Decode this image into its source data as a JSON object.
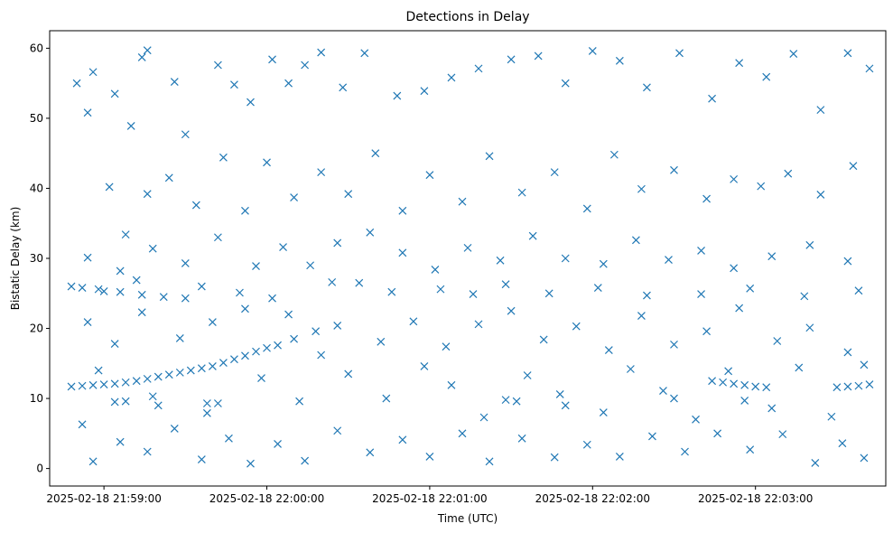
{
  "chart_data": {
    "type": "scatter",
    "title": "Detections in Delay",
    "xlabel": "Time (UTC)",
    "ylabel": "Bistatic Delay (km)",
    "x_ticks": [
      "2025-02-18 21:59:00",
      "2025-02-18 22:00:00",
      "2025-02-18 22:01:00",
      "2025-02-18 22:02:00",
      "2025-02-18 22:03:00"
    ],
    "y_ticks": [
      0,
      10,
      20,
      30,
      40,
      50,
      60
    ],
    "xlim": [
      "2025-02-18 21:58:40",
      "2025-02-18 22:03:48"
    ],
    "ylim": [
      -2.5,
      62.5
    ],
    "grid": false,
    "marker": "x",
    "color": "#1f77b4",
    "series": [
      {
        "points": [
          [
            "2025-02-18 21:58:48",
            11.7
          ],
          [
            "2025-02-18 21:58:52",
            11.8
          ],
          [
            "2025-02-18 21:58:56",
            11.9
          ],
          [
            "2025-02-18 21:59:00",
            12.0
          ],
          [
            "2025-02-18 21:59:04",
            12.1
          ],
          [
            "2025-02-18 21:59:08",
            12.3
          ],
          [
            "2025-02-18 21:59:12",
            12.5
          ],
          [
            "2025-02-18 21:59:16",
            12.8
          ],
          [
            "2025-02-18 21:59:20",
            13.1
          ],
          [
            "2025-02-18 21:59:24",
            13.4
          ],
          [
            "2025-02-18 21:59:28",
            13.7
          ],
          [
            "2025-02-18 21:59:32",
            14.0
          ],
          [
            "2025-02-18 21:59:36",
            14.3
          ],
          [
            "2025-02-18 21:59:40",
            14.6
          ],
          [
            "2025-02-18 21:59:44",
            15.1
          ],
          [
            "2025-02-18 21:59:48",
            15.6
          ],
          [
            "2025-02-18 21:59:52",
            16.1
          ],
          [
            "2025-02-18 21:59:56",
            16.7
          ],
          [
            "2025-02-18 22:00:00",
            17.2
          ],
          [
            "2025-02-18 22:00:04",
            17.6
          ],
          [
            "2025-02-18 22:00:10",
            18.5
          ],
          [
            "2025-02-18 22:00:18",
            19.6
          ],
          [
            "2025-02-18 22:00:26",
            20.4
          ],
          [
            "2025-02-18 22:00:34",
            26.5
          ],
          [
            "2025-02-18 22:02:44",
            12.5
          ],
          [
            "2025-02-18 22:02:48",
            12.3
          ],
          [
            "2025-02-18 22:02:52",
            12.1
          ],
          [
            "2025-02-18 22:02:56",
            11.9
          ],
          [
            "2025-02-18 22:03:00",
            11.7
          ],
          [
            "2025-02-18 22:03:04",
            11.6
          ],
          [
            "2025-02-18 22:03:30",
            11.6
          ],
          [
            "2025-02-18 22:03:34",
            11.7
          ],
          [
            "2025-02-18 22:03:38",
            11.8
          ],
          [
            "2025-02-18 22:03:42",
            12.0
          ],
          [
            "2025-02-18 21:58:48",
            26.0
          ],
          [
            "2025-02-18 21:58:52",
            25.8
          ],
          [
            "2025-02-18 21:58:58",
            25.6
          ],
          [
            "2025-02-18 21:59:06",
            25.2
          ],
          [
            "2025-02-18 21:59:14",
            24.8
          ],
          [
            "2025-02-18 21:59:22",
            24.5
          ],
          [
            "2025-02-18 21:59:30",
            24.3
          ],
          [
            "2025-02-18 21:59:04",
            9.5
          ],
          [
            "2025-02-18 21:59:08",
            9.6
          ],
          [
            "2025-02-18 21:59:20",
            9.0
          ],
          [
            "2025-02-18 21:59:38",
            9.3
          ],
          [
            "2025-02-18 21:59:42",
            9.3
          ],
          [
            "2025-02-18 22:01:28",
            9.8
          ],
          [
            "2025-02-18 22:01:32",
            9.6
          ],
          [
            "2025-02-18 22:01:50",
            9.0
          ],
          [
            "2025-02-18 22:02:30",
            10.0
          ],
          [
            "2025-02-18 22:02:56",
            9.7
          ],
          [
            "2025-02-18 21:58:50",
            55.0
          ],
          [
            "2025-02-18 21:58:54",
            50.8
          ],
          [
            "2025-02-18 21:58:56",
            56.6
          ],
          [
            "2025-02-18 21:59:04",
            53.5
          ],
          [
            "2025-02-18 21:59:10",
            48.9
          ],
          [
            "2025-02-18 21:59:14",
            58.7
          ],
          [
            "2025-02-18 21:59:16",
            59.7
          ],
          [
            "2025-02-18 21:59:26",
            55.2
          ],
          [
            "2025-02-18 21:59:30",
            47.7
          ],
          [
            "2025-02-18 21:59:42",
            57.6
          ],
          [
            "2025-02-18 21:59:48",
            54.8
          ],
          [
            "2025-02-18 21:59:54",
            52.3
          ],
          [
            "2025-02-18 22:00:02",
            58.4
          ],
          [
            "2025-02-18 22:00:08",
            55.0
          ],
          [
            "2025-02-18 22:00:14",
            57.6
          ],
          [
            "2025-02-18 22:00:20",
            59.4
          ],
          [
            "2025-02-18 22:00:28",
            54.4
          ],
          [
            "2025-02-18 22:00:36",
            59.3
          ],
          [
            "2025-02-18 22:00:48",
            53.2
          ],
          [
            "2025-02-18 22:00:58",
            53.9
          ],
          [
            "2025-02-18 22:01:08",
            55.8
          ],
          [
            "2025-02-18 22:01:18",
            57.1
          ],
          [
            "2025-02-18 22:01:30",
            58.4
          ],
          [
            "2025-02-18 22:01:40",
            58.9
          ],
          [
            "2025-02-18 22:01:50",
            55.0
          ],
          [
            "2025-02-18 22:02:00",
            59.6
          ],
          [
            "2025-02-18 22:02:10",
            58.2
          ],
          [
            "2025-02-18 22:02:20",
            54.4
          ],
          [
            "2025-02-18 22:02:32",
            59.3
          ],
          [
            "2025-02-18 22:02:44",
            52.8
          ],
          [
            "2025-02-18 22:02:54",
            57.9
          ],
          [
            "2025-02-18 22:03:04",
            55.9
          ],
          [
            "2025-02-18 22:03:14",
            59.2
          ],
          [
            "2025-02-18 22:03:24",
            51.2
          ],
          [
            "2025-02-18 22:03:34",
            59.3
          ],
          [
            "2025-02-18 22:03:42",
            57.1
          ],
          [
            "2025-02-18 21:59:02",
            40.2
          ],
          [
            "2025-02-18 21:59:08",
            33.4
          ],
          [
            "2025-02-18 21:59:16",
            39.2
          ],
          [
            "2025-02-18 21:59:24",
            41.5
          ],
          [
            "2025-02-18 21:59:34",
            37.6
          ],
          [
            "2025-02-18 21:59:44",
            44.4
          ],
          [
            "2025-02-18 21:59:52",
            36.8
          ],
          [
            "2025-02-18 22:00:00",
            43.7
          ],
          [
            "2025-02-18 22:00:10",
            38.7
          ],
          [
            "2025-02-18 22:00:20",
            42.3
          ],
          [
            "2025-02-18 22:00:30",
            39.2
          ],
          [
            "2025-02-18 22:00:40",
            45.0
          ],
          [
            "2025-02-18 22:00:50",
            36.8
          ],
          [
            "2025-02-18 22:01:00",
            41.9
          ],
          [
            "2025-02-18 22:01:12",
            38.1
          ],
          [
            "2025-02-18 22:01:22",
            44.6
          ],
          [
            "2025-02-18 22:01:34",
            39.4
          ],
          [
            "2025-02-18 22:01:46",
            42.3
          ],
          [
            "2025-02-18 22:01:58",
            37.1
          ],
          [
            "2025-02-18 22:02:08",
            44.8
          ],
          [
            "2025-02-18 22:02:18",
            39.9
          ],
          [
            "2025-02-18 22:02:30",
            42.6
          ],
          [
            "2025-02-18 22:02:42",
            38.5
          ],
          [
            "2025-02-18 22:02:52",
            41.3
          ],
          [
            "2025-02-18 22:03:02",
            40.3
          ],
          [
            "2025-02-18 22:03:12",
            42.1
          ],
          [
            "2025-02-18 22:03:24",
            39.1
          ],
          [
            "2025-02-18 22:03:36",
            43.2
          ],
          [
            "2025-02-18 21:58:54",
            30.1
          ],
          [
            "2025-02-18 21:59:06",
            28.2
          ],
          [
            "2025-02-18 21:59:18",
            31.4
          ],
          [
            "2025-02-18 21:59:30",
            29.3
          ],
          [
            "2025-02-18 21:59:42",
            33.0
          ],
          [
            "2025-02-18 21:59:56",
            28.9
          ],
          [
            "2025-02-18 22:00:06",
            31.6
          ],
          [
            "2025-02-18 22:00:16",
            29.0
          ],
          [
            "2025-02-18 22:00:26",
            32.2
          ],
          [
            "2025-02-18 22:00:38",
            33.7
          ],
          [
            "2025-02-18 22:00:50",
            30.8
          ],
          [
            "2025-02-18 22:01:02",
            28.4
          ],
          [
            "2025-02-18 22:01:14",
            31.5
          ],
          [
            "2025-02-18 22:01:26",
            29.7
          ],
          [
            "2025-02-18 22:01:38",
            33.2
          ],
          [
            "2025-02-18 22:01:50",
            30.0
          ],
          [
            "2025-02-18 22:02:04",
            29.2
          ],
          [
            "2025-02-18 22:02:16",
            32.6
          ],
          [
            "2025-02-18 22:02:28",
            29.8
          ],
          [
            "2025-02-18 22:02:40",
            31.1
          ],
          [
            "2025-02-18 22:02:52",
            28.6
          ],
          [
            "2025-02-18 22:03:06",
            30.3
          ],
          [
            "2025-02-18 22:03:20",
            31.9
          ],
          [
            "2025-02-18 22:03:34",
            29.6
          ],
          [
            "2025-02-18 21:58:54",
            20.9
          ],
          [
            "2025-02-18 21:59:04",
            17.8
          ],
          [
            "2025-02-18 21:59:14",
            22.3
          ],
          [
            "2025-02-18 21:59:28",
            18.6
          ],
          [
            "2025-02-18 21:59:40",
            20.9
          ],
          [
            "2025-02-18 21:59:52",
            22.8
          ],
          [
            "2025-02-18 22:00:08",
            22.0
          ],
          [
            "2025-02-18 22:00:20",
            16.2
          ],
          [
            "2025-02-18 22:00:42",
            18.1
          ],
          [
            "2025-02-18 22:00:54",
            21.0
          ],
          [
            "2025-02-18 22:01:06",
            17.4
          ],
          [
            "2025-02-18 22:01:18",
            20.6
          ],
          [
            "2025-02-18 22:01:30",
            22.5
          ],
          [
            "2025-02-18 22:01:42",
            18.4
          ],
          [
            "2025-02-18 22:01:54",
            20.3
          ],
          [
            "2025-02-18 22:02:06",
            16.9
          ],
          [
            "2025-02-18 22:02:18",
            21.8
          ],
          [
            "2025-02-18 22:02:30",
            17.7
          ],
          [
            "2025-02-18 22:02:42",
            19.6
          ],
          [
            "2025-02-18 22:02:54",
            22.9
          ],
          [
            "2025-02-18 22:03:08",
            18.2
          ],
          [
            "2025-02-18 22:03:20",
            20.1
          ],
          [
            "2025-02-18 22:03:34",
            16.6
          ],
          [
            "2025-02-18 21:58:52",
            6.3
          ],
          [
            "2025-02-18 21:58:56",
            1.0
          ],
          [
            "2025-02-18 21:59:06",
            3.8
          ],
          [
            "2025-02-18 21:59:16",
            2.4
          ],
          [
            "2025-02-18 21:59:26",
            5.7
          ],
          [
            "2025-02-18 21:59:36",
            1.3
          ],
          [
            "2025-02-18 21:59:46",
            4.3
          ],
          [
            "2025-02-18 21:59:54",
            0.7
          ],
          [
            "2025-02-18 22:00:04",
            3.5
          ],
          [
            "2025-02-18 22:00:14",
            1.1
          ],
          [
            "2025-02-18 22:00:26",
            5.4
          ],
          [
            "2025-02-18 22:00:38",
            2.3
          ],
          [
            "2025-02-18 22:00:50",
            4.1
          ],
          [
            "2025-02-18 22:01:00",
            1.7
          ],
          [
            "2025-02-18 22:01:12",
            5.0
          ],
          [
            "2025-02-18 22:01:22",
            1.0
          ],
          [
            "2025-02-18 22:01:34",
            4.3
          ],
          [
            "2025-02-18 22:01:46",
            1.6
          ],
          [
            "2025-02-18 22:01:58",
            3.4
          ],
          [
            "2025-02-18 22:02:10",
            1.7
          ],
          [
            "2025-02-18 22:02:22",
            4.6
          ],
          [
            "2025-02-18 22:02:34",
            2.4
          ],
          [
            "2025-02-18 22:02:46",
            5.0
          ],
          [
            "2025-02-18 22:02:58",
            2.7
          ],
          [
            "2025-02-18 22:03:10",
            4.9
          ],
          [
            "2025-02-18 22:03:22",
            0.8
          ],
          [
            "2025-02-18 22:03:32",
            3.6
          ],
          [
            "2025-02-18 22:03:40",
            1.5
          ],
          [
            "2025-02-18 21:59:00",
            25.3
          ],
          [
            "2025-02-18 21:59:12",
            26.9
          ],
          [
            "2025-02-18 21:59:36",
            26.0
          ],
          [
            "2025-02-18 21:59:50",
            25.1
          ],
          [
            "2025-02-18 22:00:02",
            24.3
          ],
          [
            "2025-02-18 22:00:24",
            26.6
          ],
          [
            "2025-02-18 22:00:46",
            25.2
          ],
          [
            "2025-02-18 22:01:04",
            25.6
          ],
          [
            "2025-02-18 22:01:16",
            24.9
          ],
          [
            "2025-02-18 22:01:28",
            26.3
          ],
          [
            "2025-02-18 22:01:44",
            25.0
          ],
          [
            "2025-02-18 22:02:02",
            25.8
          ],
          [
            "2025-02-18 22:02:20",
            24.7
          ],
          [
            "2025-02-18 22:02:40",
            24.9
          ],
          [
            "2025-02-18 22:02:58",
            25.7
          ],
          [
            "2025-02-18 22:03:18",
            24.6
          ],
          [
            "2025-02-18 22:03:38",
            25.4
          ],
          [
            "2025-02-18 21:58:58",
            14.0
          ],
          [
            "2025-02-18 21:59:18",
            10.3
          ],
          [
            "2025-02-18 21:59:38",
            7.9
          ],
          [
            "2025-02-18 21:59:58",
            12.9
          ],
          [
            "2025-02-18 22:00:12",
            9.6
          ],
          [
            "2025-02-18 22:00:30",
            13.5
          ],
          [
            "2025-02-18 22:00:44",
            10.0
          ],
          [
            "2025-02-18 22:00:58",
            14.6
          ],
          [
            "2025-02-18 22:01:08",
            11.9
          ],
          [
            "2025-02-18 22:01:20",
            7.3
          ],
          [
            "2025-02-18 22:01:36",
            13.3
          ],
          [
            "2025-02-18 22:01:48",
            10.6
          ],
          [
            "2025-02-18 22:02:04",
            8.0
          ],
          [
            "2025-02-18 22:02:14",
            14.2
          ],
          [
            "2025-02-18 22:02:26",
            11.1
          ],
          [
            "2025-02-18 22:02:38",
            7.0
          ],
          [
            "2025-02-18 22:02:50",
            13.9
          ],
          [
            "2025-02-18 22:03:06",
            8.6
          ],
          [
            "2025-02-18 22:03:16",
            14.4
          ],
          [
            "2025-02-18 22:03:28",
            7.4
          ],
          [
            "2025-02-18 22:03:40",
            14.8
          ]
        ]
      }
    ]
  }
}
